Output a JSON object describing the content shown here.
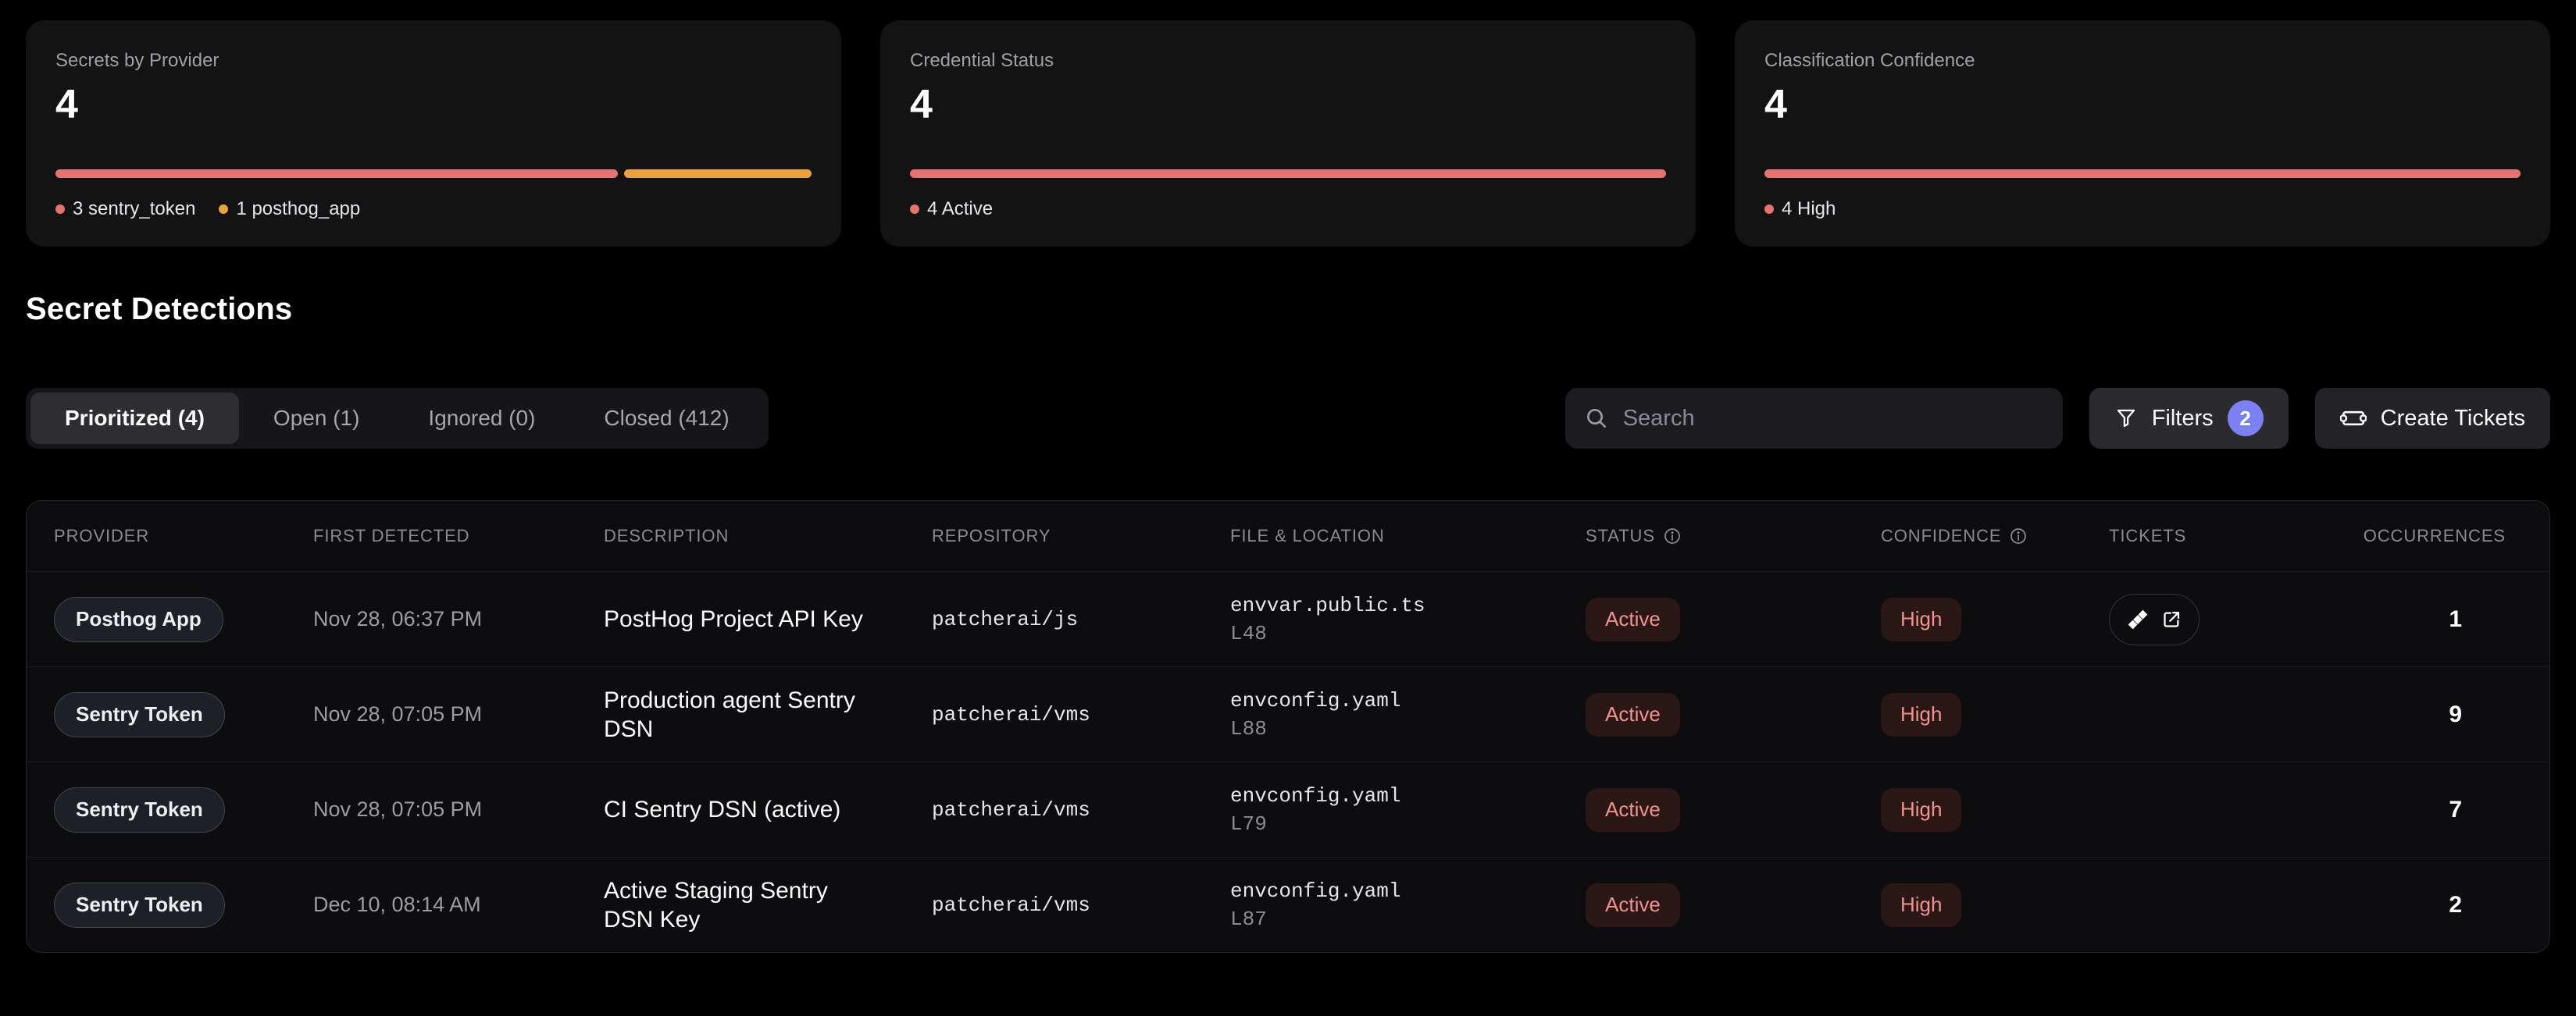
{
  "colors": {
    "accent_red": "#e5736f",
    "accent_orange": "#e9a23d",
    "status_badge_bg": "#2b1716",
    "status_badge_text": "#f0938d",
    "filters_count_bg": "#7c80f2",
    "card_bg": "#131314",
    "page_bg": "#000000"
  },
  "cards": [
    {
      "title": "Secrets by Provider",
      "value": "4",
      "segments": [
        {
          "label": "3 sentry_token",
          "color": "#e5736f",
          "share": 3
        },
        {
          "label": "1 posthog_app",
          "color": "#e9a23d",
          "share": 1
        }
      ]
    },
    {
      "title": "Credential Status",
      "value": "4",
      "segments": [
        {
          "label": "4 Active",
          "color": "#e5736f",
          "share": 1
        }
      ]
    },
    {
      "title": "Classification Confidence",
      "value": "4",
      "segments": [
        {
          "label": "4 High",
          "color": "#e5736f",
          "share": 1
        }
      ]
    }
  ],
  "section": {
    "title": "Secret Detections"
  },
  "tabs": [
    {
      "label": "Prioritized (4)",
      "active": true
    },
    {
      "label": "Open (1)",
      "active": false
    },
    {
      "label": "Ignored (0)",
      "active": false
    },
    {
      "label": "Closed (412)",
      "active": false
    }
  ],
  "toolbar": {
    "search_placeholder": "Search",
    "filters_label": "Filters",
    "filters_count": "2",
    "create_tickets_label": "Create Tickets"
  },
  "icons": {
    "search": "magnifier",
    "filters": "funnel",
    "create_tickets": "ticket",
    "tickets_cell": [
      "jira",
      "external-link"
    ],
    "header_info": "info-circle"
  },
  "table": {
    "columns": {
      "provider": "Provider",
      "first_detected": "First Detected",
      "description": "Description",
      "repository": "Repository",
      "file_location": "File & Location",
      "status": "Status",
      "confidence": "Confidence",
      "tickets": "Tickets",
      "occurrences": "Occurrences"
    },
    "rows": [
      {
        "provider": "Posthog App",
        "first_detected": "Nov 28, 06:37 PM",
        "description": "PostHog Project API Key",
        "repository": "patcherai/js",
        "file": "envvar.public.ts",
        "line": "L48",
        "status": "Active",
        "confidence": "High",
        "has_ticket": true,
        "occurrences": "1"
      },
      {
        "provider": "Sentry Token",
        "first_detected": "Nov 28, 07:05 PM",
        "description": "Production agent Sentry DSN",
        "repository": "patcherai/vms",
        "file": "envconfig.yaml",
        "line": "L88",
        "status": "Active",
        "confidence": "High",
        "has_ticket": false,
        "occurrences": "9"
      },
      {
        "provider": "Sentry Token",
        "first_detected": "Nov 28, 07:05 PM",
        "description": "CI Sentry DSN (active)",
        "repository": "patcherai/vms",
        "file": "envconfig.yaml",
        "line": "L79",
        "status": "Active",
        "confidence": "High",
        "has_ticket": false,
        "occurrences": "7"
      },
      {
        "provider": "Sentry Token",
        "first_detected": "Dec 10, 08:14 AM",
        "description": "Active Staging Sentry DSN Key",
        "repository": "patcherai/vms",
        "file": "envconfig.yaml",
        "line": "L87",
        "status": "Active",
        "confidence": "High",
        "has_ticket": false,
        "occurrences": "2"
      }
    ]
  }
}
